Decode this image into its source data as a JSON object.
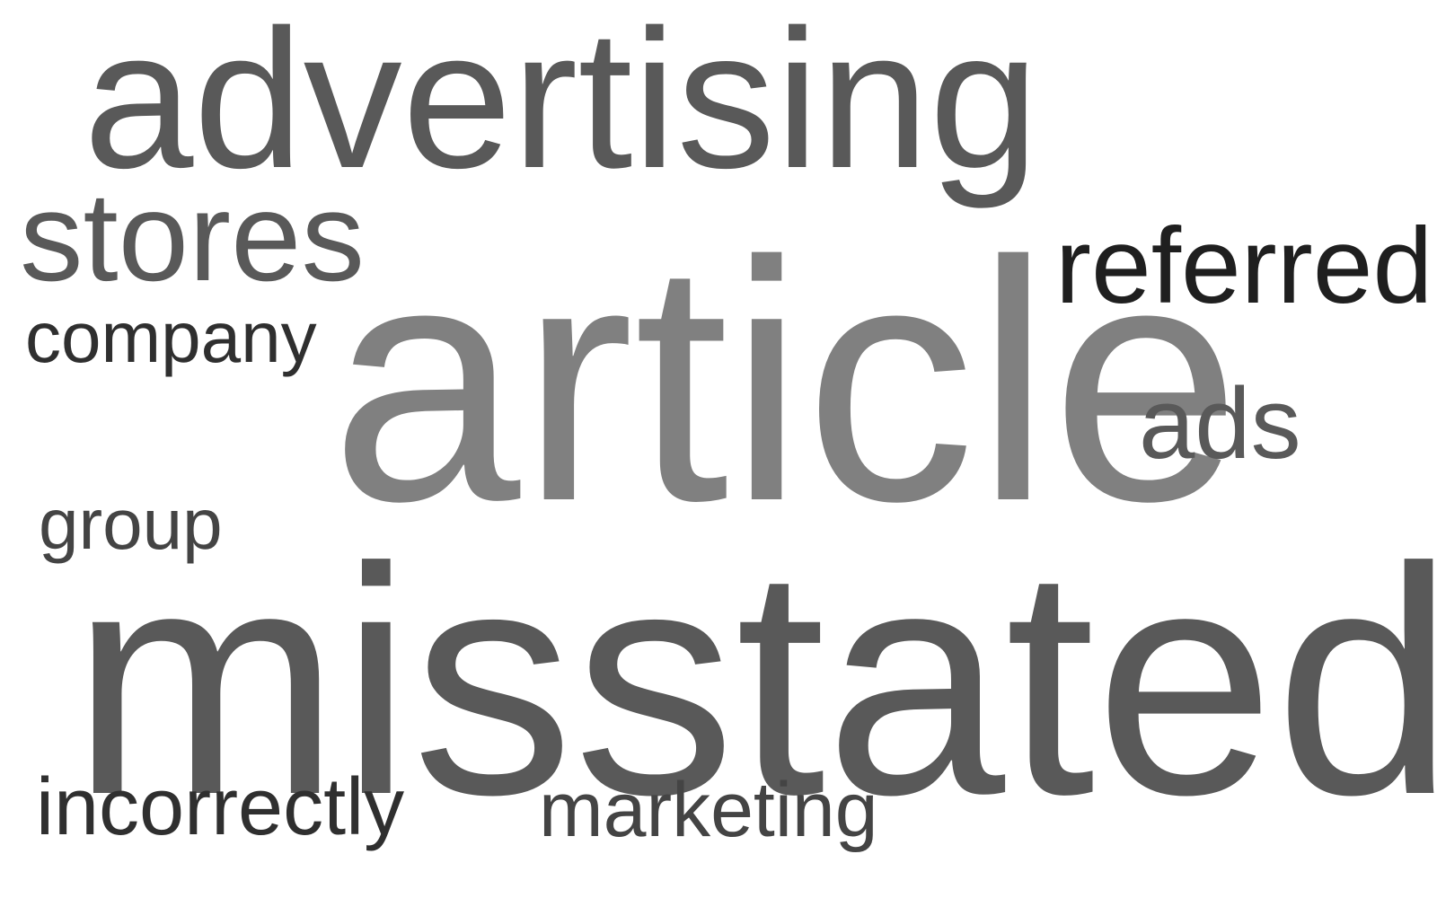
{
  "word_cloud": {
    "words": [
      {
        "id": "advertising",
        "text": "advertising",
        "color": "#595959"
      },
      {
        "id": "stores",
        "text": "stores",
        "color": "#595959"
      },
      {
        "id": "referred",
        "text": "referred",
        "color": "#1f1f1f"
      },
      {
        "id": "company",
        "text": "company",
        "color": "#2f2f2f"
      },
      {
        "id": "article",
        "text": "article",
        "color": "#808080"
      },
      {
        "id": "ads",
        "text": "ads",
        "color": "#595959"
      },
      {
        "id": "group",
        "text": "group",
        "color": "#444444"
      },
      {
        "id": "misstated",
        "text": "misstated",
        "color": "#595959"
      },
      {
        "id": "incorrectly",
        "text": "incorrectly",
        "color": "#2f2f2f"
      },
      {
        "id": "marketing",
        "text": "marketing",
        "color": "#444444"
      }
    ]
  }
}
